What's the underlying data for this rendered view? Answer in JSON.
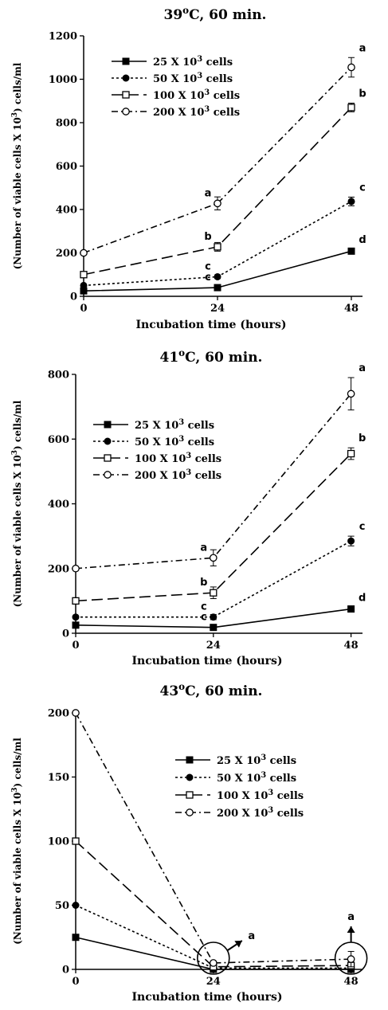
{
  "chart_data": [
    {
      "type": "line",
      "title": "39°C, 60 min.",
      "xlabel": "Incubation time (hours)",
      "ylabel": "(Number of viable cells X 10³) cells/ml",
      "x": [
        0,
        24,
        48
      ],
      "xticks": [
        "0",
        "24",
        "48"
      ],
      "ylim": [
        0,
        1200
      ],
      "yticks": [
        "0",
        "200",
        "400",
        "600",
        "800",
        "1000",
        "1200"
      ],
      "legend_position": "top-left",
      "series": [
        {
          "name": "25 X 10³ cells",
          "marker": "filled-square",
          "dash": "solid",
          "values": [
            25,
            40,
            208
          ],
          "errors": [
            0,
            5,
            8
          ],
          "letters": [
            "",
            "c",
            "d"
          ]
        },
        {
          "name": "50 X 10³ cells",
          "marker": "filled-circle",
          "dash": "dotted",
          "values": [
            50,
            90,
            437
          ],
          "errors": [
            0,
            8,
            20
          ],
          "letters": [
            "",
            "c",
            "c"
          ]
        },
        {
          "name": "100 X 10³ cells",
          "marker": "open-square",
          "dash": "long-dash",
          "values": [
            100,
            228,
            870
          ],
          "errors": [
            0,
            20,
            20
          ],
          "letters": [
            "",
            "b",
            "b"
          ]
        },
        {
          "name": "200 X 10³ cells",
          "marker": "open-circle",
          "dash": "dash-dot",
          "values": [
            200,
            428,
            1055
          ],
          "errors": [
            0,
            30,
            45
          ],
          "letters": [
            "",
            "a",
            "a"
          ]
        }
      ]
    },
    {
      "type": "line",
      "title": "41°C, 60 min.",
      "xlabel": "Incubation time (hours)",
      "ylabel": "(Number of viable cells X 10³) cells/ml",
      "x": [
        0,
        24,
        48
      ],
      "xticks": [
        "0",
        "24",
        "48"
      ],
      "ylim": [
        0,
        800
      ],
      "yticks": [
        "0",
        "200",
        "400",
        "600",
        "800"
      ],
      "legend_position": "top-left",
      "series": [
        {
          "name": "25 X 10³ cells",
          "marker": "filled-square",
          "dash": "solid",
          "values": [
            25,
            18,
            75
          ],
          "errors": [
            0,
            3,
            5
          ],
          "letters": [
            "",
            "c",
            "d"
          ]
        },
        {
          "name": "50 X 10³ cells",
          "marker": "filled-circle",
          "dash": "dotted",
          "values": [
            50,
            50,
            285
          ],
          "errors": [
            0,
            8,
            15
          ],
          "letters": [
            "",
            "c",
            "c"
          ]
        },
        {
          "name": "100 X 10³ cells",
          "marker": "open-square",
          "dash": "long-dash",
          "values": [
            100,
            125,
            555
          ],
          "errors": [
            0,
            18,
            18
          ],
          "letters": [
            "",
            "b",
            "b"
          ]
        },
        {
          "name": "200 X 10³ cells",
          "marker": "open-circle",
          "dash": "dash-dot",
          "values": [
            200,
            233,
            740
          ],
          "errors": [
            0,
            25,
            50
          ],
          "letters": [
            "",
            "a",
            "a"
          ]
        }
      ]
    },
    {
      "type": "line",
      "title": "43°C, 60 min.",
      "xlabel": "Incubation time (hours)",
      "ylabel": "(Number of viable cells X 10³) cells/ml",
      "x": [
        0,
        24,
        48
      ],
      "xticks": [
        "0",
        "24",
        "48"
      ],
      "ylim": [
        0,
        200
      ],
      "yticks": [
        "0",
        "50",
        "100",
        "150",
        "200"
      ],
      "legend_position": "top-right",
      "series": [
        {
          "name": "25 X 10³ cells",
          "marker": "filled-square",
          "dash": "solid",
          "values": [
            25,
            0,
            0
          ],
          "errors": [
            0,
            0,
            0
          ],
          "letters": [
            "",
            "",
            ""
          ]
        },
        {
          "name": "50 X 10³ cells",
          "marker": "filled-circle",
          "dash": "dotted",
          "values": [
            50,
            1,
            1
          ],
          "errors": [
            0,
            0,
            0
          ],
          "letters": [
            "",
            "",
            ""
          ]
        },
        {
          "name": "100 X 10³ cells",
          "marker": "open-square",
          "dash": "long-dash",
          "values": [
            100,
            2,
            3
          ],
          "errors": [
            0,
            0,
            0
          ],
          "letters": [
            "",
            "",
            ""
          ]
        },
        {
          "name": "200 X 10³ cells",
          "marker": "open-circle",
          "dash": "dash-dot",
          "values": [
            200,
            5,
            8
          ],
          "errors": [
            0,
            0,
            6
          ],
          "letters": [
            "",
            "",
            ""
          ]
        }
      ],
      "annotations": [
        {
          "at_x": 24,
          "shape": "circle-with-arrow",
          "arrow": "up-right",
          "letter": "a"
        },
        {
          "at_x": 48,
          "shape": "circle-with-arrow",
          "arrow": "up",
          "letter": "a"
        }
      ]
    }
  ]
}
